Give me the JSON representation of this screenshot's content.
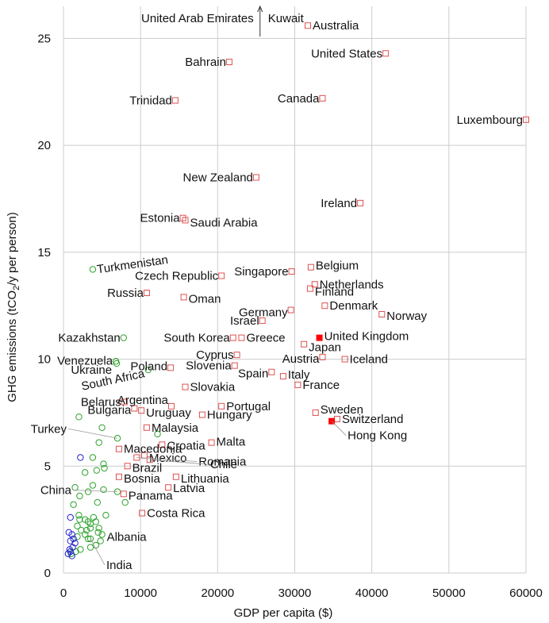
{
  "chart_data": {
    "type": "scatter",
    "xlabel": "GDP per capita ($)",
    "ylabel": "GHG emissions (tCO2/y per person)",
    "xlim": [
      0,
      60000
    ],
    "ylim": [
      0,
      26.5
    ],
    "xticks": [
      0,
      10000,
      20000,
      30000,
      40000,
      50000,
      60000
    ],
    "yticks": [
      0,
      5,
      10,
      15,
      20,
      25
    ],
    "grid": true,
    "colors": {
      "high_income": "#e05050",
      "highlight": "#ff0000",
      "middle_income": "#2aa02a",
      "low_income": "#2020cc",
      "label_line": "#999999"
    },
    "offchart_arrow": {
      "label_left": "United Arab Emirates",
      "label_right": "Kuwait",
      "x": 25500
    },
    "labeled_points": [
      {
        "name": "Australia",
        "x": 31700,
        "y": 25.6,
        "group": "high"
      },
      {
        "name": "United States",
        "x": 41800,
        "y": 24.3,
        "group": "high"
      },
      {
        "name": "Bahrain",
        "x": 21500,
        "y": 23.9,
        "group": "high"
      },
      {
        "name": "Canada",
        "x": 33600,
        "y": 22.2,
        "group": "high"
      },
      {
        "name": "Trinidad",
        "x": 14500,
        "y": 22.1,
        "group": "high"
      },
      {
        "name": "Luxembourg",
        "x": 60000,
        "y": 21.2,
        "group": "high"
      },
      {
        "name": "New Zealand",
        "x": 25000,
        "y": 18.5,
        "group": "high"
      },
      {
        "name": "Ireland",
        "x": 38500,
        "y": 17.3,
        "group": "high"
      },
      {
        "name": "Estonia",
        "x": 15500,
        "y": 16.6,
        "group": "high"
      },
      {
        "name": "Saudi Arabia",
        "x": 15800,
        "y": 16.5,
        "group": "high"
      },
      {
        "name": "Turkmenistan",
        "x": 3800,
        "y": 14.2,
        "group": "middle"
      },
      {
        "name": "Belgium",
        "x": 32100,
        "y": 14.3,
        "group": "high"
      },
      {
        "name": "Singapore",
        "x": 29600,
        "y": 14.1,
        "group": "high"
      },
      {
        "name": "Czech Republic",
        "x": 20500,
        "y": 13.9,
        "group": "high"
      },
      {
        "name": "Netherlands",
        "x": 32600,
        "y": 13.5,
        "group": "high"
      },
      {
        "name": "Russia",
        "x": 10800,
        "y": 13.1,
        "group": "high"
      },
      {
        "name": "Finland",
        "x": 32000,
        "y": 13.3,
        "group": "high"
      },
      {
        "name": "Oman",
        "x": 15600,
        "y": 12.9,
        "group": "high"
      },
      {
        "name": "Denmark",
        "x": 33900,
        "y": 12.5,
        "group": "high"
      },
      {
        "name": "Germany",
        "x": 29500,
        "y": 12.3,
        "group": "high"
      },
      {
        "name": "Norway",
        "x": 41300,
        "y": 12.1,
        "group": "high"
      },
      {
        "name": "Israel",
        "x": 25800,
        "y": 11.8,
        "group": "high"
      },
      {
        "name": "Kazakhstan",
        "x": 7800,
        "y": 11.0,
        "group": "middle"
      },
      {
        "name": "South Korea",
        "x": 22000,
        "y": 11.0,
        "group": "high"
      },
      {
        "name": "Greece",
        "x": 23100,
        "y": 11.0,
        "group": "high"
      },
      {
        "name": "United Kingdom",
        "x": 33200,
        "y": 11.0,
        "group": "highlight"
      },
      {
        "name": "Japan",
        "x": 31200,
        "y": 10.7,
        "group": "high"
      },
      {
        "name": "Cyprus",
        "x": 22500,
        "y": 10.2,
        "group": "high"
      },
      {
        "name": "Austria",
        "x": 33600,
        "y": 10.1,
        "group": "high"
      },
      {
        "name": "Iceland",
        "x": 36500,
        "y": 10.0,
        "group": "high"
      },
      {
        "name": "Venezuela",
        "x": 6800,
        "y": 9.9,
        "group": "middle"
      },
      {
        "name": "Poland",
        "x": 13900,
        "y": 9.6,
        "group": "high"
      },
      {
        "name": "Ukraine",
        "x": 6900,
        "y": 9.8,
        "group": "middle"
      },
      {
        "name": "Slovenia",
        "x": 22200,
        "y": 9.7,
        "group": "high"
      },
      {
        "name": "South Africa",
        "x": 11000,
        "y": 9.5,
        "group": "middle"
      },
      {
        "name": "Spain",
        "x": 27000,
        "y": 9.4,
        "group": "high"
      },
      {
        "name": "Italy",
        "x": 28500,
        "y": 9.2,
        "group": "high"
      },
      {
        "name": "France",
        "x": 30400,
        "y": 8.8,
        "group": "high"
      },
      {
        "name": "Slovakia",
        "x": 15800,
        "y": 8.7,
        "group": "high"
      },
      {
        "name": "Belarus",
        "x": 7900,
        "y": 8.0,
        "group": "high"
      },
      {
        "name": "Argentina",
        "x": 14000,
        "y": 7.8,
        "group": "high"
      },
      {
        "name": "Portugal",
        "x": 20500,
        "y": 7.8,
        "group": "high"
      },
      {
        "name": "Bulgaria",
        "x": 9200,
        "y": 7.7,
        "group": "high"
      },
      {
        "name": "Uruguay",
        "x": 10100,
        "y": 7.6,
        "group": "high"
      },
      {
        "name": "Sweden",
        "x": 32700,
        "y": 7.5,
        "group": "high"
      },
      {
        "name": "Hungary",
        "x": 18000,
        "y": 7.4,
        "group": "high"
      },
      {
        "name": "Switzerland",
        "x": 35500,
        "y": 7.2,
        "group": "high"
      },
      {
        "name": "Hong Kong",
        "x": 34800,
        "y": 7.1,
        "group": "highlight"
      },
      {
        "name": "Malaysia",
        "x": 10800,
        "y": 6.8,
        "group": "high"
      },
      {
        "name": "Turkey",
        "x": 7000,
        "y": 6.3,
        "group": "middle"
      },
      {
        "name": "Malta",
        "x": 19200,
        "y": 6.1,
        "group": "high"
      },
      {
        "name": "Croatia",
        "x": 12800,
        "y": 6.0,
        "group": "high"
      },
      {
        "name": "Macedonia",
        "x": 7200,
        "y": 5.8,
        "group": "high"
      },
      {
        "name": "Mexico",
        "x": 10500,
        "y": 5.5,
        "group": "high"
      },
      {
        "name": "Romania",
        "x": 9500,
        "y": 5.4,
        "group": "high"
      },
      {
        "name": "Chile",
        "x": 11200,
        "y": 5.3,
        "group": "high"
      },
      {
        "name": "Brazil",
        "x": 8300,
        "y": 5.0,
        "group": "high"
      },
      {
        "name": "Lithuania",
        "x": 14600,
        "y": 4.5,
        "group": "high"
      },
      {
        "name": "Bosnia",
        "x": 7200,
        "y": 4.5,
        "group": "high"
      },
      {
        "name": "Latvia",
        "x": 13600,
        "y": 4.0,
        "group": "high"
      },
      {
        "name": "China",
        "x": 7000,
        "y": 3.8,
        "group": "middle"
      },
      {
        "name": "Panama",
        "x": 7800,
        "y": 3.7,
        "group": "high"
      },
      {
        "name": "Costa Rica",
        "x": 10200,
        "y": 2.8,
        "group": "high"
      },
      {
        "name": "Albania",
        "x": 5000,
        "y": 1.8,
        "group": "middle"
      },
      {
        "name": "India",
        "x": 3500,
        "y": 1.6,
        "group": "middle"
      }
    ],
    "unlabeled_points": {
      "middle": [
        [
          2000,
          7.3
        ],
        [
          5000,
          6.8
        ],
        [
          4600,
          6.1
        ],
        [
          12200,
          6.5
        ],
        [
          5200,
          5.1
        ],
        [
          3800,
          5.4
        ],
        [
          2800,
          4.7
        ],
        [
          5300,
          4.9
        ],
        [
          4300,
          4.8
        ],
        [
          3800,
          4.1
        ],
        [
          1500,
          4.0
        ],
        [
          5200,
          3.9
        ],
        [
          3200,
          3.8
        ],
        [
          2100,
          3.6
        ],
        [
          4400,
          3.3
        ],
        [
          1300,
          3.2
        ],
        [
          2000,
          2.7
        ],
        [
          2100,
          2.5
        ],
        [
          2800,
          2.5
        ],
        [
          3500,
          2.3
        ],
        [
          3200,
          2.4
        ],
        [
          4200,
          2.4
        ],
        [
          3900,
          2.6
        ],
        [
          5500,
          2.7
        ],
        [
          4600,
          2.1
        ],
        [
          3500,
          2.1
        ],
        [
          2300,
          2.0
        ],
        [
          3000,
          2.0
        ],
        [
          4500,
          1.9
        ],
        [
          1800,
          2.2
        ],
        [
          2800,
          1.8
        ],
        [
          1800,
          1.7
        ],
        [
          3200,
          1.6
        ],
        [
          4800,
          1.5
        ],
        [
          4200,
          1.3
        ],
        [
          3500,
          1.2
        ],
        [
          2200,
          1.1
        ],
        [
          1600,
          1.0
        ],
        [
          1000,
          0.9
        ],
        [
          8000,
          3.3
        ]
      ],
      "low": [
        [
          2200,
          5.4
        ],
        [
          900,
          2.6
        ],
        [
          700,
          1.9
        ],
        [
          1100,
          1.8
        ],
        [
          1300,
          1.6
        ],
        [
          900,
          1.5
        ],
        [
          1500,
          1.4
        ],
        [
          1200,
          1.2
        ],
        [
          800,
          1.1
        ],
        [
          900,
          1.0
        ],
        [
          600,
          0.9
        ],
        [
          1100,
          0.8
        ]
      ]
    }
  }
}
